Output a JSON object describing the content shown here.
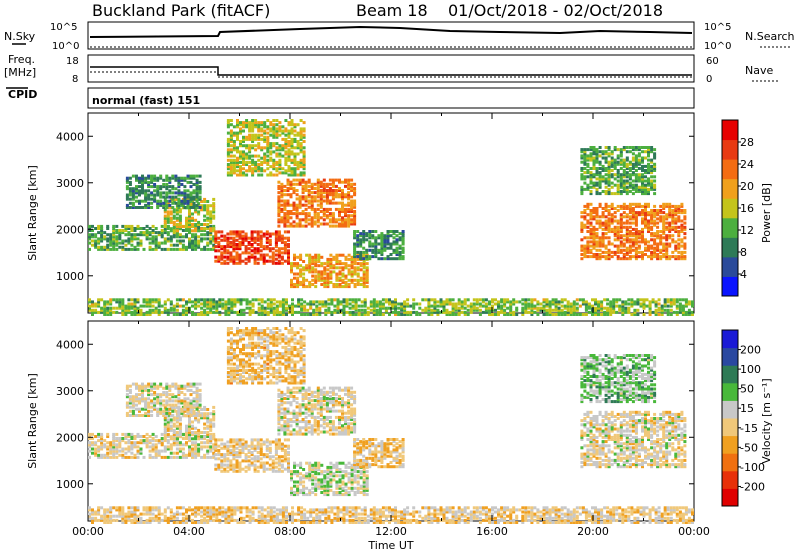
{
  "header": {
    "station": "Buckland Park (fitACF)",
    "beam": "Beam 18",
    "date_range": "01/Oct/2018 - 02/Oct/2018"
  },
  "panels": {
    "nsky": {
      "label": "N.Sky",
      "right_label": "N.Search",
      "ticks_left": [
        "10^5",
        "10^0"
      ],
      "ticks_right": [
        "10^5",
        "10^0"
      ]
    },
    "freq": {
      "label": "Freq.",
      "unit": "[MHz]",
      "right_label": "Nave",
      "ticks_left": [
        "18",
        "8"
      ],
      "ticks_right": [
        "60",
        "0"
      ]
    },
    "cpid": {
      "label": "CPID",
      "text": "normal (fast) 151"
    }
  },
  "colors": {
    "power_scale": [
      "#0a14ff",
      "#2a4a9a",
      "#2e7a57",
      "#4caf3f",
      "#c4c41b",
      "#f0a01c",
      "#f46c12",
      "#e83a12",
      "#e60000"
    ],
    "velocity_scale": [
      "#1a1ad6",
      "#2a48a0",
      "#2e7a55",
      "#48b83a",
      "#c8c8c8",
      "#f0c87a",
      "#f0a020",
      "#f07010",
      "#e83008",
      "#e00000"
    ]
  },
  "chart_data": [
    {
      "type": "heatmap",
      "name": "power-panel",
      "ylabel": "Slant Range [km]",
      "ylim": [
        200,
        4500
      ],
      "xlim": [
        0,
        24
      ],
      "yticks": [
        "1000",
        "2000",
        "3000",
        "4000"
      ],
      "colorbar": {
        "label": "Power [dB]",
        "ticks": [
          "4",
          "8",
          "12",
          "16",
          "20",
          "24",
          "28"
        ],
        "range": [
          0,
          32
        ]
      },
      "regions": [
        {
          "t0": 0.0,
          "t1": 5.0,
          "r0": 1600,
          "r1": 2100,
          "value": 12
        },
        {
          "t0": 3.0,
          "t1": 5.0,
          "r0": 2000,
          "r1": 2700,
          "value": 16
        },
        {
          "t0": 1.5,
          "t1": 4.5,
          "r0": 2500,
          "r1": 3200,
          "value": 10
        },
        {
          "t0": 5.0,
          "t1": 8.0,
          "r0": 1300,
          "r1": 2000,
          "value": 26
        },
        {
          "t0": 7.5,
          "t1": 10.5,
          "r0": 2100,
          "r1": 3100,
          "value": 22
        },
        {
          "t0": 8.0,
          "t1": 11.0,
          "r0": 800,
          "r1": 1500,
          "value": 20
        },
        {
          "t0": 5.5,
          "t1": 8.5,
          "r0": 3200,
          "r1": 4400,
          "value": 16
        },
        {
          "t0": 10.5,
          "t1": 12.5,
          "r0": 1400,
          "r1": 2000,
          "value": 10
        },
        {
          "t0": 19.5,
          "t1": 23.7,
          "r0": 1400,
          "r1": 2600,
          "value": 22
        },
        {
          "t0": 19.5,
          "t1": 22.5,
          "r0": 2800,
          "r1": 3800,
          "value": 12
        },
        {
          "t0": 0.0,
          "t1": 24.0,
          "r0": 200,
          "r1": 550,
          "value": 14
        }
      ]
    },
    {
      "type": "heatmap",
      "name": "velocity-panel",
      "xlabel": "Time UT",
      "ylabel": "Slant Range [km]",
      "ylim": [
        200,
        4500
      ],
      "xlim": [
        0,
        24
      ],
      "yticks": [
        "1000",
        "2000",
        "3000",
        "4000"
      ],
      "xticks": [
        "00:00",
        "04:00",
        "08:00",
        "12:00",
        "16:00",
        "20:00",
        "00:00"
      ],
      "colorbar": {
        "label": "Velocity [m s⁻¹]",
        "ticks": [
          "200",
          "100",
          "50",
          "15",
          "-15",
          "-50",
          "-100",
          "-200"
        ],
        "range": [
          -250,
          250
        ]
      },
      "regions": [
        {
          "t0": 0.0,
          "t1": 5.0,
          "r0": 1600,
          "r1": 2100,
          "value": 0
        },
        {
          "t0": 3.0,
          "t1": 5.0,
          "r0": 2000,
          "r1": 2700,
          "value": 0
        },
        {
          "t0": 1.5,
          "t1": 4.5,
          "r0": 2500,
          "r1": 3200,
          "value": 5
        },
        {
          "t0": 5.0,
          "t1": 8.0,
          "r0": 1300,
          "r1": 2000,
          "value": -20
        },
        {
          "t0": 7.5,
          "t1": 10.5,
          "r0": 2100,
          "r1": 3100,
          "value": 0
        },
        {
          "t0": 8.0,
          "t1": 11.0,
          "r0": 800,
          "r1": 1500,
          "value": 30
        },
        {
          "t0": 5.5,
          "t1": 8.5,
          "r0": 3200,
          "r1": 4400,
          "value": -40
        },
        {
          "t0": 10.5,
          "t1": 12.5,
          "r0": 1400,
          "r1": 2000,
          "value": -35
        },
        {
          "t0": 19.5,
          "t1": 23.7,
          "r0": 1400,
          "r1": 2600,
          "value": 0
        },
        {
          "t0": 19.5,
          "t1": 22.5,
          "r0": 2800,
          "r1": 3800,
          "value": 60
        },
        {
          "t0": 0.0,
          "t1": 24.0,
          "r0": 200,
          "r1": 550,
          "value": -20
        }
      ]
    }
  ]
}
